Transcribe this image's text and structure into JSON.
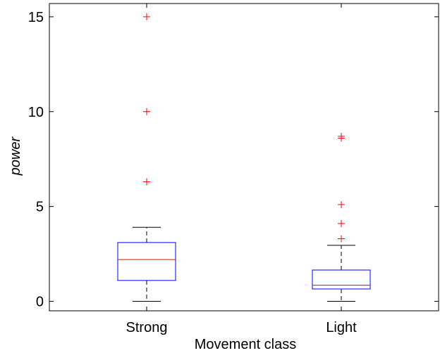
{
  "chart_data": {
    "type": "box",
    "categories": [
      "Strong",
      "Light"
    ],
    "xlabel": "Movement class",
    "ylabel": "power",
    "ylim": [
      -0.5,
      15.7
    ],
    "yticks": [
      0,
      5,
      10,
      15
    ],
    "grid": false,
    "legend": "none",
    "boxes": [
      {
        "category": "Strong",
        "whisker_low": 0,
        "q1": 1.1,
        "median": 2.2,
        "q3": 3.1,
        "whisker_high": 3.9,
        "outliers": [
          6.3,
          10.0,
          15.0
        ]
      },
      {
        "category": "Light",
        "whisker_low": 0,
        "q1": 0.65,
        "median": 0.85,
        "q3": 1.65,
        "whisker_high": 2.95,
        "outliers": [
          3.3,
          4.1,
          5.1,
          8.6,
          8.7
        ]
      }
    ],
    "colors": {
      "box": "#0000ff",
      "median": "#ff0000",
      "whisker": "#000000",
      "outlier": "#ff0000",
      "axes": "#000000"
    }
  }
}
